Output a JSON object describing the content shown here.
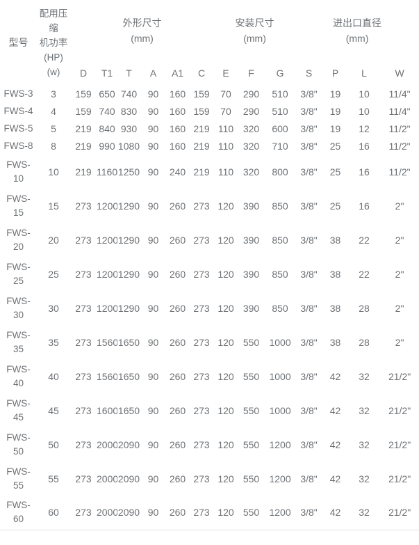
{
  "table": {
    "header": {
      "model_label": "型号",
      "power_label": "配用压\n缩\n机功率\n(HP)\n(w)",
      "groups": [
        {
          "title": "外形尺寸",
          "unit": "(mm)"
        },
        {
          "title": "安装尺寸",
          "unit": "(mm)"
        },
        {
          "title": "进出口直径",
          "unit": "(mm)"
        }
      ],
      "columns": [
        "D",
        "T1",
        "T",
        "A",
        "A1",
        "C",
        "E",
        "F",
        "G",
        "S",
        "P",
        "L",
        "W"
      ]
    },
    "rows": [
      {
        "model": "FWS-3",
        "power": "3",
        "values": [
          "159",
          "650",
          "740",
          "90",
          "160",
          "159",
          "70",
          "290",
          "510",
          "3/8\"",
          "19",
          "10",
          "11/4\""
        ]
      },
      {
        "model": "FWS-4",
        "power": "4",
        "values": [
          "159",
          "740",
          "830",
          "90",
          "160",
          "159",
          "70",
          "290",
          "510",
          "3/8\"",
          "19",
          "10",
          "11/4\""
        ]
      },
      {
        "model": "FWS-5",
        "power": "5",
        "values": [
          "219",
          "840",
          "930",
          "90",
          "160",
          "219",
          "110",
          "320",
          "600",
          "3/8\"",
          "19",
          "12",
          "11/2\""
        ]
      },
      {
        "model": "FWS-8",
        "power": "8",
        "values": [
          "219",
          "990",
          "1080",
          "90",
          "160",
          "219",
          "110",
          "320",
          "710",
          "3/8\"",
          "25",
          "16",
          "11/2\""
        ]
      },
      {
        "model": "FWS-10",
        "power": "10",
        "values": [
          "219",
          "1160",
          "1250",
          "90",
          "240",
          "219",
          "110",
          "320",
          "800",
          "3/8\"",
          "25",
          "16",
          "11/2\""
        ]
      },
      {
        "model": "FWS-15",
        "power": "15",
        "values": [
          "273",
          "1200",
          "1290",
          "90",
          "260",
          "273",
          "120",
          "390",
          "850",
          "3/8\"",
          "25",
          "16",
          "2\""
        ]
      },
      {
        "model": "FWS-20",
        "power": "20",
        "values": [
          "273",
          "1200",
          "1290",
          "90",
          "260",
          "273",
          "120",
          "390",
          "850",
          "3/8\"",
          "38",
          "22",
          "2\""
        ]
      },
      {
        "model": "FWS-25",
        "power": "25",
        "values": [
          "273",
          "1200",
          "1290",
          "90",
          "260",
          "273",
          "120",
          "390",
          "850",
          "3/8\"",
          "38",
          "22",
          "2\""
        ]
      },
      {
        "model": "FWS-30",
        "power": "30",
        "values": [
          "273",
          "1200",
          "1290",
          "90",
          "260",
          "273",
          "120",
          "390",
          "850",
          "3/8\"",
          "38",
          "28",
          "2\""
        ]
      },
      {
        "model": "FWS-35",
        "power": "35",
        "values": [
          "273",
          "1560",
          "1650",
          "90",
          "260",
          "273",
          "120",
          "550",
          "1000",
          "3/8\"",
          "38",
          "28",
          "2\""
        ]
      },
      {
        "model": "FWS-40",
        "power": "40",
        "values": [
          "273",
          "1560",
          "1650",
          "90",
          "260",
          "273",
          "120",
          "550",
          "1000",
          "3/8\"",
          "42",
          "32",
          "21/2\""
        ]
      },
      {
        "model": "FWS-45",
        "power": "45",
        "values": [
          "273",
          "1600",
          "1650",
          "90",
          "260",
          "273",
          "120",
          "550",
          "1000",
          "3/8\"",
          "42",
          "32",
          "21/2\""
        ]
      },
      {
        "model": "FWS-50",
        "power": "50",
        "values": [
          "273",
          "2000",
          "2090",
          "90",
          "260",
          "273",
          "120",
          "550",
          "1200",
          "3/8\"",
          "42",
          "32",
          "21/2\""
        ]
      },
      {
        "model": "FWS-55",
        "power": "55",
        "values": [
          "273",
          "2000",
          "2090",
          "90",
          "260",
          "273",
          "120",
          "550",
          "1200",
          "3/8\"",
          "42",
          "32",
          "21/2\""
        ]
      },
      {
        "model": "FWS-60",
        "power": "60",
        "values": [
          "273",
          "2000",
          "2090",
          "90",
          "260",
          "273",
          "120",
          "550",
          "1200",
          "3/8\"",
          "42",
          "32",
          "21/2\""
        ]
      }
    ],
    "colors": {
      "text": "#6d7175",
      "bottom_rule": "#dde0e4",
      "background": "#ffffff"
    }
  }
}
